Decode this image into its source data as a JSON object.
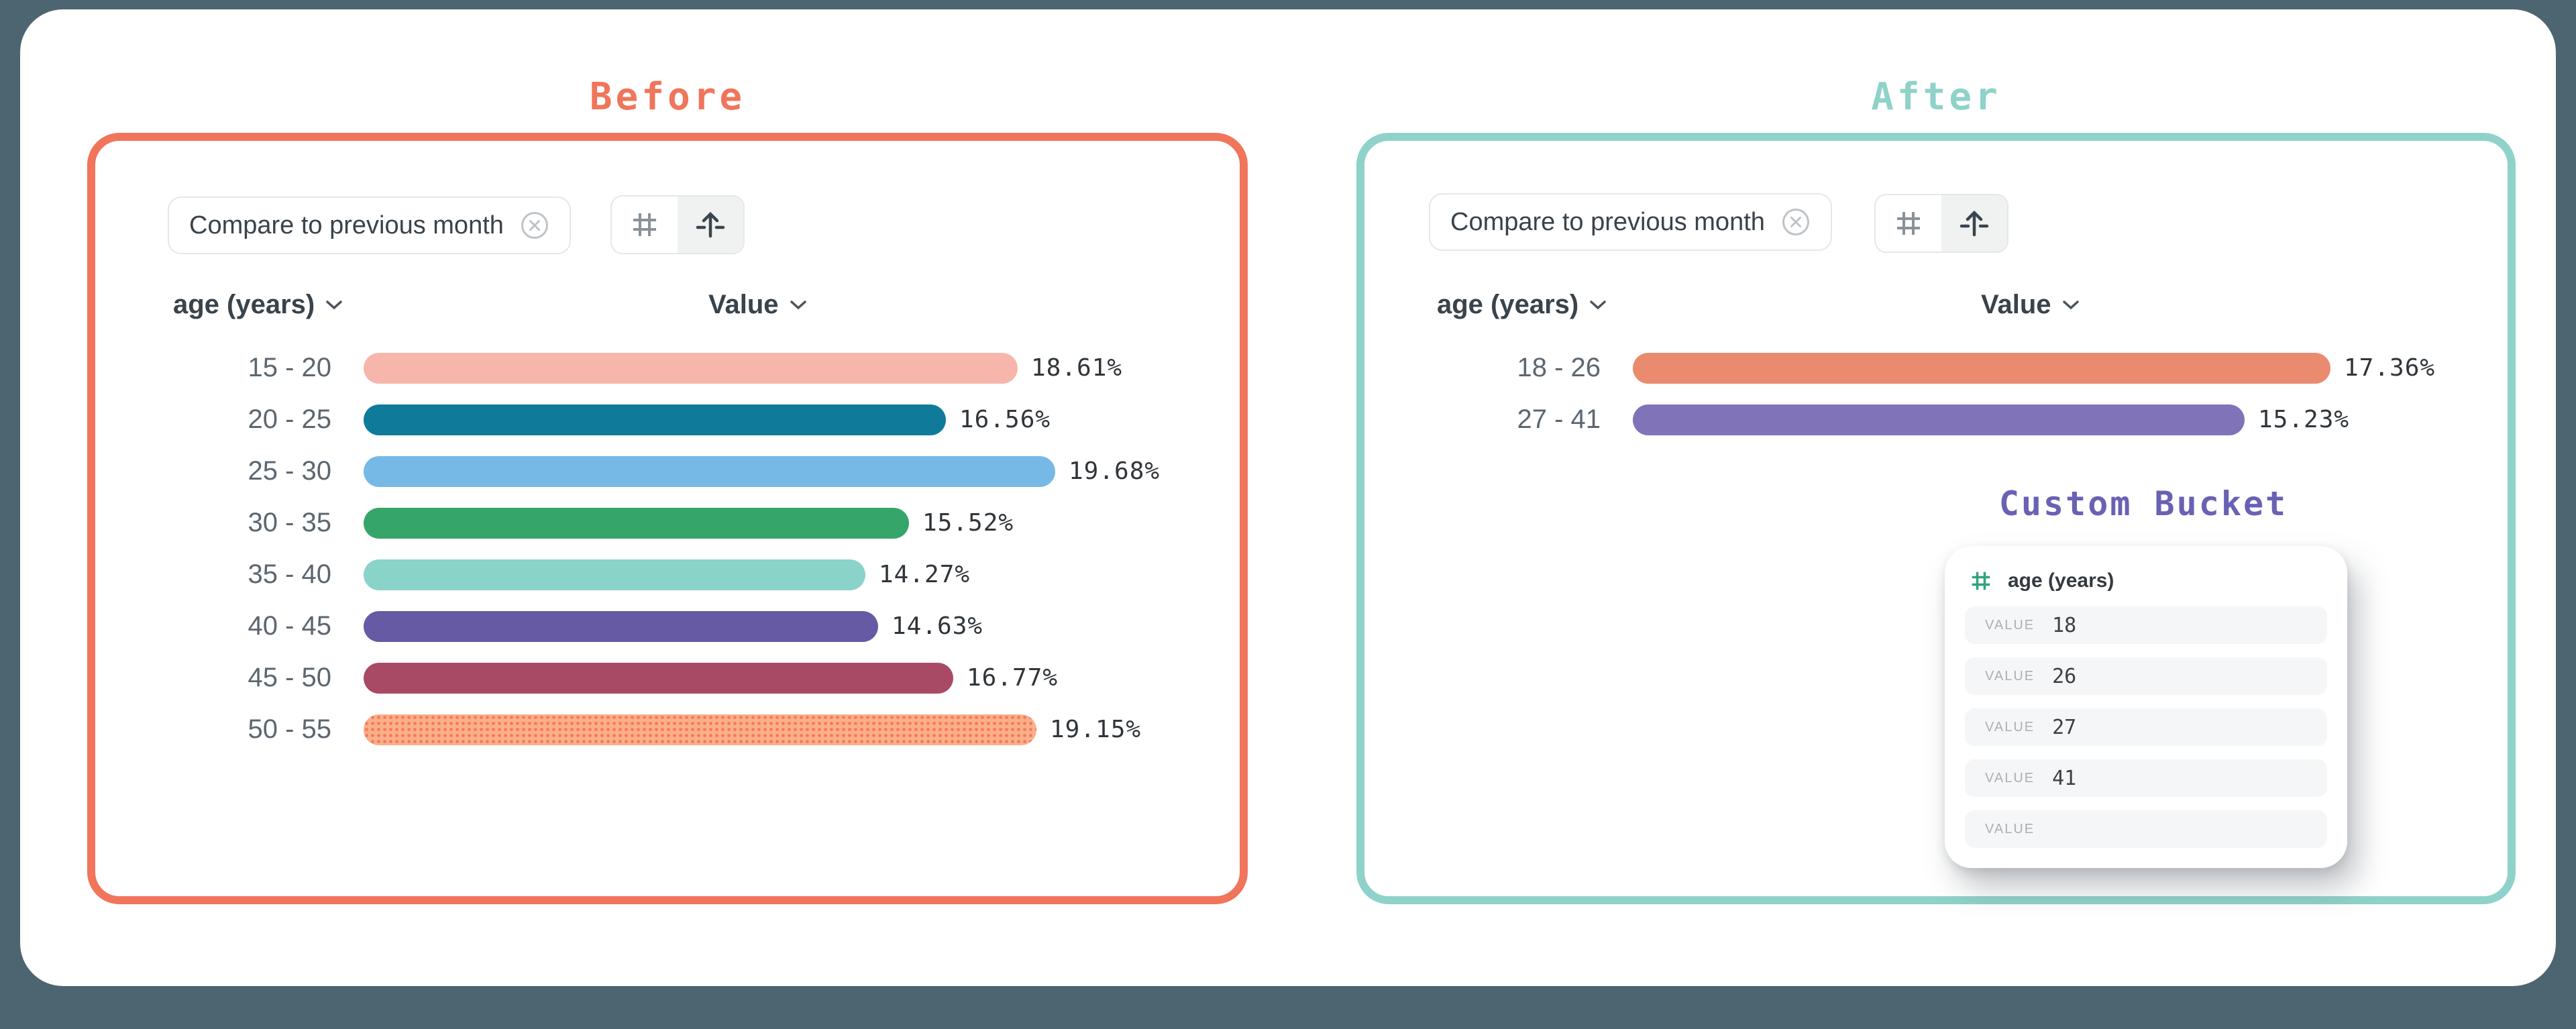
{
  "page": {
    "background": "#4C6570",
    "stage_background": "#FFFFFF"
  },
  "panels": {
    "before": {
      "title": "Before",
      "accent": "#F0755A",
      "chip": {
        "label": "Compare to previous month",
        "close_icon": "circle-x"
      },
      "toolbar": {
        "buttons": [
          {
            "icon": "hash-grid",
            "active": false
          },
          {
            "icon": "arrow-up-axis",
            "active": true
          }
        ]
      },
      "columns": {
        "dimension": "age (years)",
        "value": "Value"
      },
      "rows": [
        {
          "label": "15 - 20",
          "value": 18.61,
          "display": "18.61%",
          "color": "#F7B6AC"
        },
        {
          "label": "20 - 25",
          "value": 16.56,
          "display": "16.56%",
          "color": "#107A9B"
        },
        {
          "label": "25 - 30",
          "value": 19.68,
          "display": "19.68%",
          "color": "#77B9E6"
        },
        {
          "label": "30 - 35",
          "value": 15.52,
          "display": "15.52%",
          "color": "#35A569"
        },
        {
          "label": "35 - 40",
          "value": 14.27,
          "display": "14.27%",
          "color": "#8AD3C9"
        },
        {
          "label": "40 - 45",
          "value": 14.63,
          "display": "14.63%",
          "color": "#675AA4"
        },
        {
          "label": "45 - 50",
          "value": 16.77,
          "display": "16.77%",
          "color": "#A84A66"
        },
        {
          "label": "50 - 55",
          "value": 19.15,
          "display": "19.15%",
          "color": "#FBAF88",
          "pattern": "dots",
          "pattern_color": "#F2654F"
        }
      ]
    },
    "after": {
      "title": "After",
      "accent": "#8FD2C9",
      "chip": {
        "label": "Compare to previous month",
        "close_icon": "circle-x"
      },
      "toolbar": {
        "buttons": [
          {
            "icon": "hash-grid",
            "active": false
          },
          {
            "icon": "arrow-up-axis",
            "active": true
          }
        ]
      },
      "columns": {
        "dimension": "age (years)",
        "value": "Value"
      },
      "rows": [
        {
          "label": "18 - 26",
          "value": 17.36,
          "display": "17.36%",
          "color": "#EA8A6F"
        },
        {
          "label": "27 - 41",
          "value": 15.23,
          "display": "15.23%",
          "color": "#8173B8"
        }
      ],
      "custom_bucket": {
        "title": "Custom Bucket",
        "accent": "#6861B4",
        "field": {
          "icon": "hash-icon",
          "icon_color": "#2FA37C",
          "label": "age (years)"
        },
        "rows": [
          {
            "label": "VALUE",
            "value": "18"
          },
          {
            "label": "VALUE",
            "value": "26"
          },
          {
            "label": "VALUE",
            "value": "27"
          },
          {
            "label": "VALUE",
            "value": "41"
          },
          {
            "label": "VALUE",
            "value": ""
          }
        ]
      }
    }
  },
  "chart_data": [
    {
      "type": "bar",
      "title": "Before — age (years) distribution",
      "categories": [
        "15 - 20",
        "20 - 25",
        "25 - 30",
        "30 - 35",
        "35 - 40",
        "40 - 45",
        "45 - 50",
        "50 - 55"
      ],
      "values": [
        18.61,
        16.56,
        19.68,
        15.52,
        14.27,
        14.63,
        16.77,
        19.15
      ],
      "xlabel": "Value",
      "ylabel": "age (years)",
      "orientation": "horizontal",
      "unit": "%",
      "grid": false,
      "legend": "none"
    },
    {
      "type": "bar",
      "title": "After — age (years) custom buckets",
      "categories": [
        "18 - 26",
        "27 - 41"
      ],
      "values": [
        17.36,
        15.23
      ],
      "xlabel": "Value",
      "ylabel": "age (years)",
      "orientation": "horizontal",
      "unit": "%",
      "grid": false,
      "legend": "none"
    }
  ]
}
